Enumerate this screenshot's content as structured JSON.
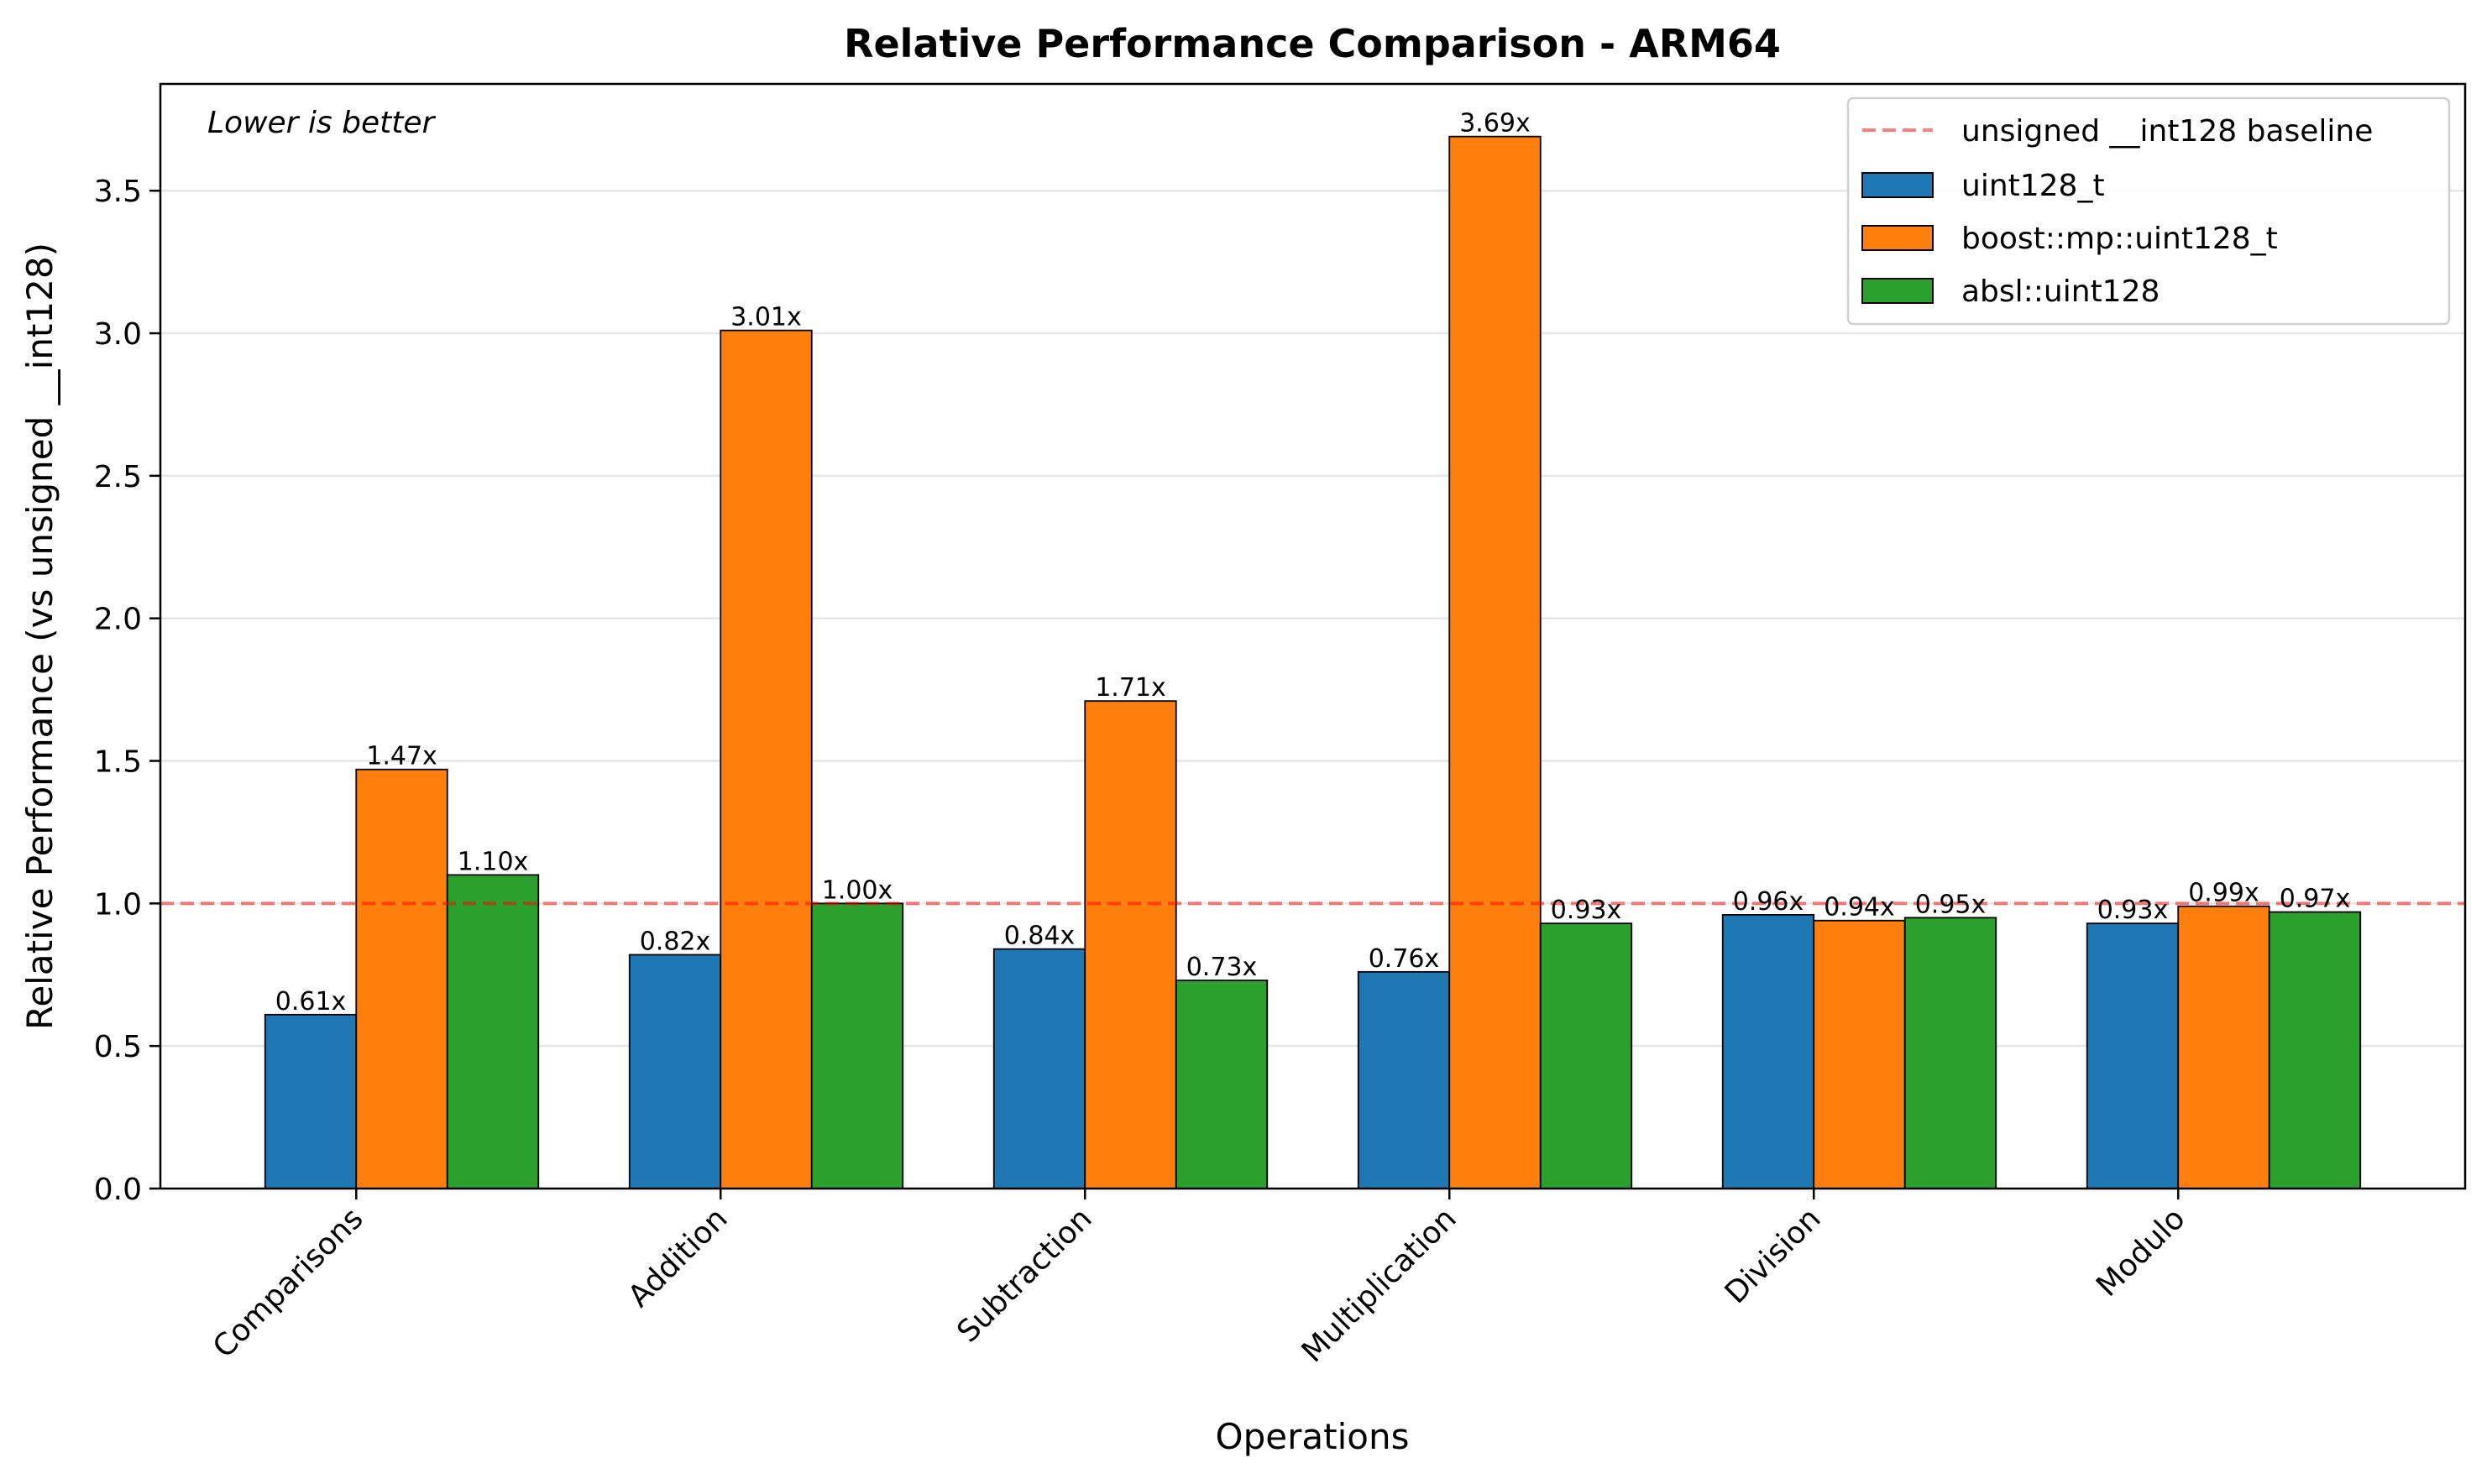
{
  "chart_data": {
    "type": "bar",
    "title": "Relative Performance Comparison - ARM64",
    "xlabel": "Operations",
    "ylabel": "Relative Performance (vs unsigned __int128)",
    "annotation": "Lower is better",
    "categories": [
      "Comparisons",
      "Addition",
      "Subtraction",
      "Multiplication",
      "Division",
      "Modulo"
    ],
    "series": [
      {
        "name": "uint128_t",
        "color": "#1f77b4",
        "values": [
          0.61,
          0.82,
          0.84,
          0.76,
          0.96,
          0.93
        ],
        "labels": [
          "0.61x",
          "0.82x",
          "0.84x",
          "0.76x",
          "0.96x",
          "0.93x"
        ]
      },
      {
        "name": "boost::mp::uint128_t",
        "color": "#ff7f0e",
        "values": [
          1.47,
          3.01,
          1.71,
          3.69,
          0.94,
          0.99
        ],
        "labels": [
          "1.47x",
          "3.01x",
          "1.71x",
          "3.69x",
          "0.94x",
          "0.99x"
        ]
      },
      {
        "name": "absl::uint128",
        "color": "#2ca02c",
        "values": [
          1.1,
          1.0,
          0.73,
          0.93,
          0.95,
          0.97
        ],
        "labels": [
          "1.10x",
          "1.00x",
          "0.73x",
          "0.93x",
          "0.95x",
          "0.97x"
        ]
      }
    ],
    "baseline": {
      "name": "unsigned __int128 baseline",
      "value": 1.0,
      "color": "#ff0000"
    },
    "ylim": [
      0,
      3.8745
    ],
    "yticks": [
      "0.0",
      "0.5",
      "1.0",
      "1.5",
      "2.0",
      "2.5",
      "3.0",
      "3.5"
    ],
    "ytick_values": [
      0,
      0.5,
      1.0,
      1.5,
      2.0,
      2.5,
      3.0,
      3.5
    ],
    "grid": "y",
    "legend_position": "top-right"
  }
}
